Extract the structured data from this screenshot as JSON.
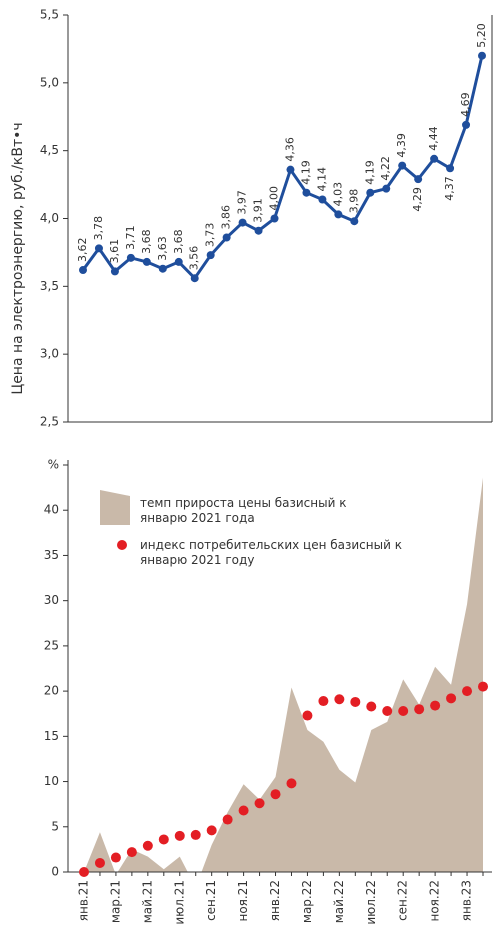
{
  "chart_data": [
    {
      "type": "line",
      "y_label": "Цена на электроэнергию, руб./кВт•ч",
      "color": "#1f4e9c",
      "ylim": [
        2.5,
        5.5
      ],
      "yticks": [
        {
          "value": 2.5,
          "label": "2,5"
        },
        {
          "value": 3.0,
          "label": "3,0"
        },
        {
          "value": 3.5,
          "label": "3,5"
        },
        {
          "value": 4.0,
          "label": "4,0"
        },
        {
          "value": 4.5,
          "label": "4,5"
        },
        {
          "value": 5.0,
          "label": "5,0"
        },
        {
          "value": 5.5,
          "label": "5,5"
        }
      ],
      "values": [
        3.62,
        3.78,
        3.61,
        3.71,
        3.68,
        3.63,
        3.68,
        3.56,
        3.73,
        3.86,
        3.97,
        3.91,
        4.0,
        4.36,
        4.19,
        4.14,
        4.03,
        3.98,
        4.19,
        4.22,
        4.39,
        4.29,
        4.44,
        4.37,
        4.69,
        5.2
      ],
      "value_labels": [
        "3,62",
        "3,78",
        "3,61",
        "3,71",
        "3,68",
        "3,63",
        "3,68",
        "3,56",
        "3,73",
        "3,86",
        "3,97",
        "3,91",
        "4,00",
        "4,36",
        "4,19",
        "4,14",
        "4,03",
        "3,98",
        "4,19",
        "4,22",
        "4,39",
        "4,29",
        "4,44",
        "4,37",
        "4,69",
        "5,20"
      ]
    },
    {
      "type": "area-dots",
      "categories": [
        "янв.21",
        null,
        "мар.21",
        null,
        "май.21",
        null,
        "июл.21",
        null,
        "сен.21",
        null,
        "ноя.21",
        null,
        "янв.22",
        null,
        "мар.22",
        null,
        "май.22",
        null,
        "июл.22",
        null,
        "сен.22",
        null,
        "ноя.22",
        null,
        "янв.23",
        null
      ],
      "ylim": [
        0,
        45
      ],
      "yticks": [
        0,
        5,
        10,
        15,
        20,
        25,
        30,
        35,
        40,
        {
          "value": 45,
          "label": "%"
        }
      ],
      "series": [
        {
          "name": "темп прироста цены базисный к январю 2021 года",
          "color": "#c9b9a9",
          "kind": "area",
          "values": [
            0,
            4.4,
            -0.3,
            2.5,
            1.7,
            0.3,
            1.7,
            -1.7,
            3.0,
            6.6,
            9.7,
            8.0,
            10.5,
            20.4,
            15.7,
            14.4,
            11.3,
            9.9,
            15.7,
            16.6,
            21.3,
            18.5,
            22.7,
            20.7,
            29.6,
            43.6
          ]
        },
        {
          "name": "индекс потребительских цен базисный к январю 2021 году",
          "color": "#e31e24",
          "kind": "dots",
          "values": [
            0,
            1.0,
            1.6,
            2.2,
            2.9,
            3.6,
            4.0,
            4.1,
            4.6,
            5.8,
            6.8,
            7.6,
            8.6,
            9.8,
            17.3,
            18.9,
            19.1,
            18.8,
            18.3,
            17.8,
            17.8,
            18.0,
            18.4,
            19.2,
            20.0,
            20.5
          ]
        }
      ]
    }
  ]
}
